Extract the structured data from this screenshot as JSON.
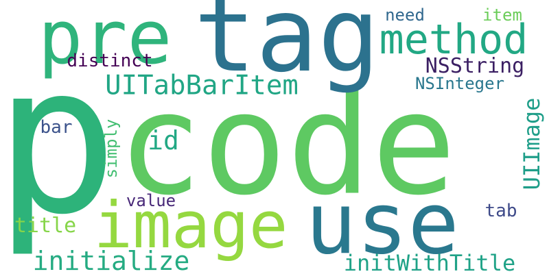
{
  "words": [
    {
      "text": "p",
      "color": "#2db37a",
      "vertical": false
    },
    {
      "text": "code",
      "color": "#5ec962",
      "vertical": false
    },
    {
      "text": "tag",
      "color": "#2c728e",
      "vertical": false
    },
    {
      "text": "pre",
      "color": "#2fb47c",
      "vertical": false
    },
    {
      "text": "method",
      "color": "#22a884",
      "vertical": false
    },
    {
      "text": "image",
      "color": "#95d840",
      "vertical": false
    },
    {
      "text": "use",
      "color": "#2a788e",
      "vertical": false
    },
    {
      "text": "UITabBarItem",
      "color": "#21a685",
      "vertical": false
    },
    {
      "text": "NSString",
      "color": "#3b1f63",
      "vertical": false
    },
    {
      "text": "NSInteger",
      "color": "#2a778e",
      "vertical": false
    },
    {
      "text": "need",
      "color": "#31688e",
      "vertical": false
    },
    {
      "text": "item",
      "color": "#6ccd5a",
      "vertical": false
    },
    {
      "text": "distinct",
      "color": "#440154",
      "vertical": false
    },
    {
      "text": "id",
      "color": "#22a884",
      "vertical": false
    },
    {
      "text": "bar",
      "color": "#3b528b",
      "vertical": false
    },
    {
      "text": "simply",
      "color": "#42be71",
      "vertical": true
    },
    {
      "text": "UIImage",
      "color": "#1f9e89",
      "vertical": true
    },
    {
      "text": "value",
      "color": "#482878",
      "vertical": false
    },
    {
      "text": "title",
      "color": "#86d549",
      "vertical": false
    },
    {
      "text": "tab",
      "color": "#3e4a89",
      "vertical": false
    },
    {
      "text": "initialize",
      "color": "#25ab82",
      "vertical": false
    },
    {
      "text": "initWithTitle",
      "color": "#1fa287",
      "vertical": false
    }
  ]
}
